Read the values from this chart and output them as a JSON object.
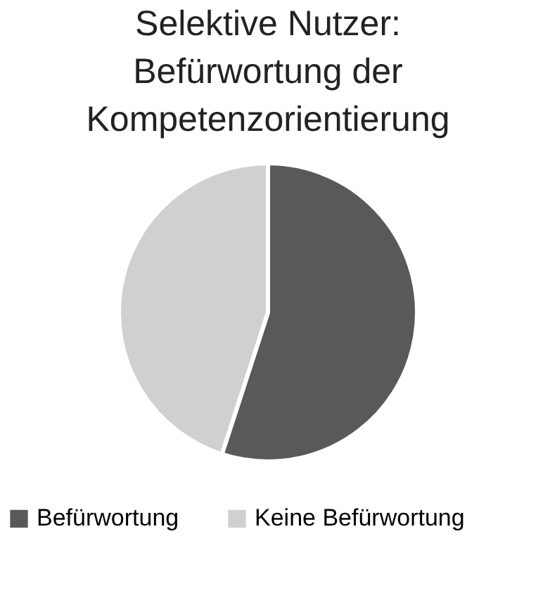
{
  "chart_data": {
    "type": "pie",
    "title": "Selektive Nutzer:\nBefürwortung der\nKompetenzorientierung",
    "categories": [
      "Befürwortung",
      "Keine Befürwortung"
    ],
    "values": [
      55,
      45
    ],
    "colors": [
      "#595959",
      "#d0d0d0"
    ],
    "legend": "bottom"
  }
}
